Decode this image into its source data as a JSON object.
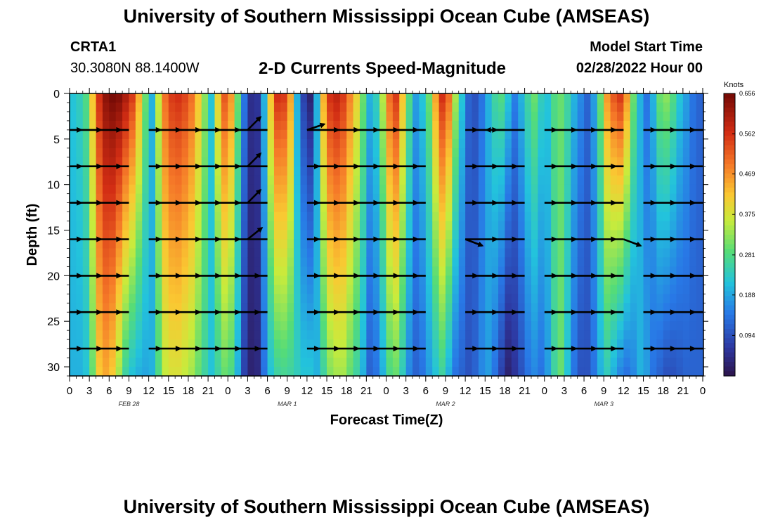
{
  "header": {
    "title": "University of Southern Mississippi Ocean Cube (AMSEAS)",
    "station_id": "CRTA1",
    "coordinates": "30.3080N  88.1400W",
    "model_start_label": "Model Start Time",
    "model_start_value": "02/28/2022 Hour 00"
  },
  "footer": {
    "title": "University of Southern Mississippi Ocean Cube (AMSEAS)"
  },
  "chart_data": {
    "type": "heatmap",
    "title": "2-D Currents Speed-Magnitude",
    "xlabel": "Forecast Time(Z)",
    "ylabel": "Depth (ft)",
    "colorbar_label": "Knots",
    "colorbar_ticks": [
      0.094,
      0.188,
      0.281,
      0.375,
      0.469,
      0.562,
      0.656
    ],
    "colorbar_range": [
      0.0,
      0.656
    ],
    "x_hours": [
      0,
      3,
      6,
      9,
      12,
      15,
      18,
      21,
      24,
      27,
      30,
      33,
      36,
      39,
      42,
      45,
      48,
      51,
      54,
      57,
      60,
      63,
      66,
      69,
      72,
      75,
      78,
      81,
      84,
      87,
      90,
      93,
      96
    ],
    "x_tick_labels": [
      "0",
      "3",
      "6",
      "9",
      "12",
      "15",
      "18",
      "21",
      "0",
      "3",
      "6",
      "9",
      "12",
      "15",
      "18",
      "21",
      "0",
      "3",
      "6",
      "9",
      "12",
      "15",
      "18",
      "21",
      "0",
      "3",
      "6",
      "9",
      "12",
      "15",
      "18",
      "21",
      "0"
    ],
    "date_labels": [
      {
        "label": "FEB 28",
        "hour": 9
      },
      {
        "label": "MAR 1",
        "hour": 33
      },
      {
        "label": "MAR 2",
        "hour": 57
      },
      {
        "label": "MAR 3",
        "hour": 81
      }
    ],
    "xlim": [
      0,
      96
    ],
    "ylim": [
      0,
      31
    ],
    "y_ticks": [
      0,
      5,
      10,
      15,
      20,
      25,
      30
    ],
    "depth_rows_ft": [
      4,
      8,
      12,
      16,
      20,
      24,
      28
    ],
    "column_profile_hours": [
      0,
      1,
      2,
      3,
      4,
      5,
      6,
      7,
      8,
      9,
      10,
      11,
      12,
      13,
      14,
      15,
      16,
      17,
      18,
      19,
      20,
      21,
      22,
      23,
      24,
      25,
      26,
      27,
      28,
      29,
      30,
      31,
      32,
      33,
      34,
      35,
      36,
      37,
      38,
      39,
      40,
      41,
      42,
      43,
      44,
      45,
      46,
      47,
      48,
      49,
      50,
      51,
      52,
      53,
      54,
      55,
      56,
      57,
      58,
      59,
      60,
      61,
      62,
      63,
      64,
      65,
      66,
      67,
      68,
      69,
      70,
      71,
      72,
      73,
      74,
      75,
      76,
      77,
      78,
      79,
      80,
      81,
      82,
      83,
      84,
      85,
      86,
      87,
      88,
      89,
      90,
      91,
      92,
      93,
      94,
      95,
      96
    ],
    "speed_surface": [
      0.22,
      0.24,
      0.28,
      0.42,
      0.56,
      0.63,
      0.65,
      0.64,
      0.6,
      0.55,
      0.44,
      0.3,
      0.2,
      0.36,
      0.5,
      0.55,
      0.56,
      0.54,
      0.5,
      0.42,
      0.32,
      0.22,
      0.4,
      0.52,
      0.46,
      0.3,
      0.14,
      0.05,
      0.06,
      0.2,
      0.42,
      0.56,
      0.55,
      0.45,
      0.2,
      0.08,
      0.03,
      0.2,
      0.44,
      0.56,
      0.58,
      0.55,
      0.48,
      0.4,
      0.3,
      0.2,
      0.24,
      0.35,
      0.5,
      0.55,
      0.42,
      0.28,
      0.18,
      0.22,
      0.3,
      0.45,
      0.56,
      0.5,
      0.34,
      0.22,
      0.12,
      0.1,
      0.14,
      0.2,
      0.26,
      0.28,
      0.22,
      0.15,
      0.2,
      0.26,
      0.3,
      0.24,
      0.22,
      0.28,
      0.3,
      0.26,
      0.2,
      0.16,
      0.12,
      0.18,
      0.3,
      0.46,
      0.52,
      0.55,
      0.46,
      0.3,
      0.2,
      0.14,
      0.2,
      0.3,
      0.32,
      0.28,
      0.22,
      0.18,
      0.14,
      0.12,
      0.1
    ],
    "speed_bottom": [
      0.2,
      0.2,
      0.22,
      0.3,
      0.42,
      0.45,
      0.42,
      0.34,
      0.26,
      0.22,
      0.2,
      0.19,
      0.2,
      0.28,
      0.36,
      0.38,
      0.38,
      0.36,
      0.34,
      0.3,
      0.26,
      0.22,
      0.26,
      0.3,
      0.28,
      0.2,
      0.08,
      0.03,
      0.04,
      0.14,
      0.22,
      0.26,
      0.27,
      0.26,
      0.24,
      0.22,
      0.22,
      0.2,
      0.26,
      0.32,
      0.34,
      0.34,
      0.3,
      0.26,
      0.2,
      0.12,
      0.14,
      0.2,
      0.28,
      0.3,
      0.24,
      0.16,
      0.12,
      0.14,
      0.18,
      0.22,
      0.26,
      0.2,
      0.14,
      0.12,
      0.1,
      0.12,
      0.16,
      0.18,
      0.14,
      0.08,
      0.03,
      0.06,
      0.1,
      0.14,
      0.16,
      0.14,
      0.18,
      0.26,
      0.3,
      0.22,
      0.14,
      0.1,
      0.1,
      0.14,
      0.2,
      0.24,
      0.2,
      0.16,
      0.14,
      0.16,
      0.2,
      0.18,
      0.14,
      0.12,
      0.1,
      0.1,
      0.11,
      0.12,
      0.12,
      0.12,
      0.12
    ],
    "vector_columns_hours": [
      [
        0,
        3,
        6,
        9
      ],
      [
        12,
        15,
        18,
        21,
        24,
        27,
        30
      ],
      [
        36,
        39,
        42,
        45,
        48,
        51,
        54
      ],
      [
        60,
        63,
        66,
        69
      ],
      [
        72,
        75,
        78,
        81,
        84
      ],
      [
        87,
        90,
        93,
        96
      ]
    ],
    "vectors": [
      {
        "hour": 27,
        "depth": 4,
        "dx": 1.0,
        "dy": -1.0
      },
      {
        "hour": 27,
        "depth": 8,
        "dx": 1.0,
        "dy": -1.0
      },
      {
        "hour": 27,
        "depth": 12,
        "dx": 1.0,
        "dy": -1.0
      },
      {
        "hour": 27,
        "depth": 16,
        "dx": 1.0,
        "dy": -0.8
      },
      {
        "hour": 36,
        "depth": 4,
        "dx": 0.6,
        "dy": -0.2
      },
      {
        "hour": 60,
        "depth": 16,
        "dx": 0.8,
        "dy": 0.3
      },
      {
        "hour": 66,
        "depth": 4,
        "dx": -1.0,
        "dy": 0.0
      },
      {
        "hour": 84,
        "depth": 16,
        "dx": 0.8,
        "dy": 0.3
      }
    ]
  }
}
